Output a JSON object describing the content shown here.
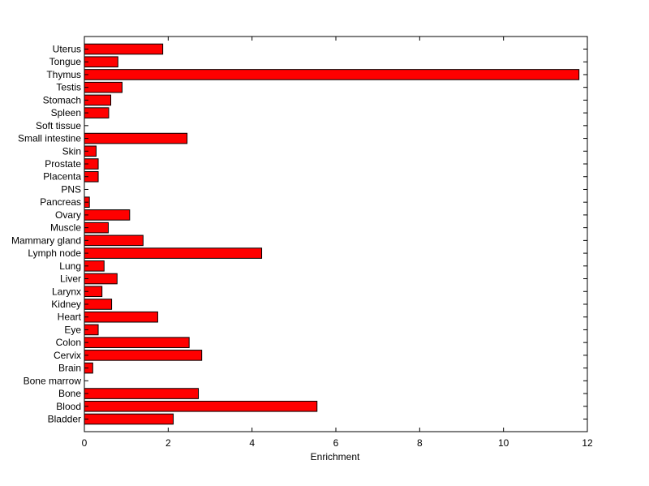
{
  "chart_data": {
    "type": "bar",
    "orientation": "horizontal",
    "title": "",
    "xlabel": "Enrichment",
    "ylabel": "",
    "xlim": [
      0,
      12
    ],
    "xticks": [
      0,
      2,
      4,
      6,
      8,
      10,
      12
    ],
    "grid": false,
    "bar_color": "#ff0000",
    "categories": [
      "Uterus",
      "Tongue",
      "Thymus",
      "Testis",
      "Stomach",
      "Spleen",
      "Soft tissue",
      "Small intestine",
      "Skin",
      "Prostate",
      "Placenta",
      "PNS",
      "Pancreas",
      "Ovary",
      "Muscle",
      "Mammary gland",
      "Lymph node",
      "Lung",
      "Liver",
      "Larynx",
      "Kidney",
      "Heart",
      "Eye",
      "Colon",
      "Cervix",
      "Brain",
      "Bone marrow",
      "Bone",
      "Blood",
      "Bladder"
    ],
    "values": [
      1.87,
      0.8,
      11.8,
      0.9,
      0.63,
      0.58,
      0.0,
      2.45,
      0.28,
      0.33,
      0.33,
      0.0,
      0.12,
      1.08,
      0.57,
      1.4,
      4.23,
      0.47,
      0.78,
      0.42,
      0.65,
      1.75,
      0.33,
      2.5,
      2.8,
      0.2,
      0.0,
      2.72,
      5.55,
      2.12
    ]
  }
}
